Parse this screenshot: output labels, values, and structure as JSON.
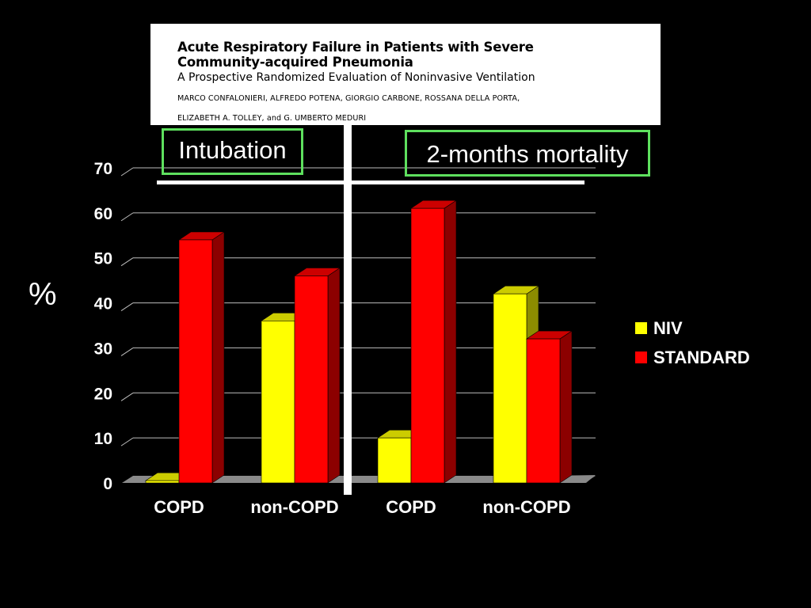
{
  "paper": {
    "title_line1": "Acute Respiratory Failure in Patients with Severe",
    "title_line2": "Community-acquired Pneumonia",
    "subtitle": "A Prospective Randomized Evaluation of Noninvasive Ventilation",
    "authors_line1": "MARCO CONFALONIERI, ALFREDO POTENA, GIORGIO CARBONE, ROSSANA DELLA PORTA,",
    "authors_line2": "ELIZABETH A. TOLLEY, and G. UMBERTO MEDURI"
  },
  "section_labels": {
    "left": "Intubation",
    "right": "2-months mortality"
  },
  "colors": {
    "niv": "#ffff00",
    "standard": "#ff0000",
    "label_border": "#5ee05e",
    "background": "#000000"
  },
  "chart_data": {
    "type": "bar",
    "categories": [
      "COPD",
      "non-COPD",
      "COPD",
      "non-COPD"
    ],
    "groups": [
      "Intubation",
      "2-months mortality"
    ],
    "series": [
      {
        "name": "NIV",
        "values": [
          0.5,
          36,
          10,
          42
        ]
      },
      {
        "name": "STANDARD",
        "values": [
          54,
          46,
          61,
          32
        ]
      }
    ],
    "ylabel": "%",
    "xlabel": "",
    "ylim": [
      0,
      70
    ],
    "yticks": [
      0,
      10,
      20,
      30,
      40,
      50,
      60,
      70
    ],
    "grid": true,
    "legend": "right"
  }
}
